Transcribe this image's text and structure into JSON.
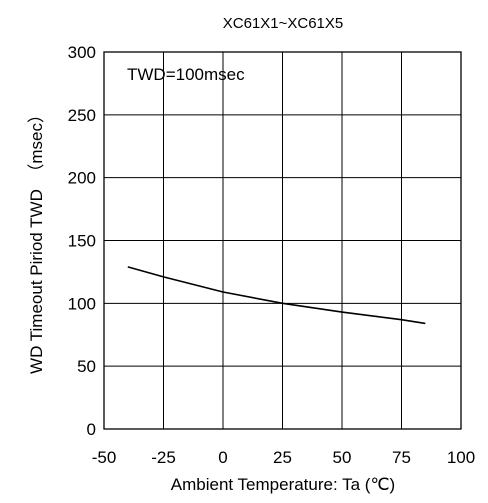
{
  "chart_data": {
    "type": "line",
    "title": "XC61X1~XC61X5",
    "xlabel": "Ambient Temperature: Ta (℃)",
    "ylabel": "WD Timeout Piriod TWD　（msec）",
    "annotation": "TWD=100msec",
    "xlim": [
      -50,
      100
    ],
    "ylim": [
      0,
      300
    ],
    "xticks": [
      -50,
      -25,
      0,
      25,
      50,
      75,
      100
    ],
    "yticks": [
      0,
      50,
      100,
      150,
      200,
      250,
      300
    ],
    "grid": true,
    "series": [
      {
        "x": [
          -40,
          -25,
          0,
          25,
          50,
          75,
          85
        ],
        "y": [
          129,
          121,
          109,
          100,
          93,
          87,
          84
        ],
        "color": "#000000"
      }
    ]
  }
}
